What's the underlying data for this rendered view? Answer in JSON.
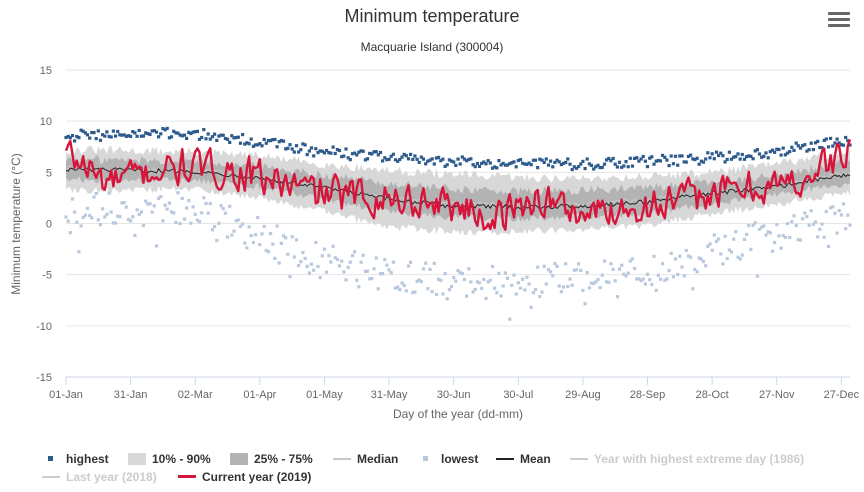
{
  "chart": {
    "title": "Minimum temperature",
    "subtitle": "Macquarie Island (300004)",
    "menu_icon": "hamburger-menu-icon"
  },
  "chart_data": {
    "type": "line",
    "xlabel": "Day of the year (dd-mm)",
    "ylabel": "Minimum temperature (°C)",
    "ylim": [
      -15,
      15
    ],
    "yticks": [
      15,
      10,
      5,
      0,
      -5,
      -10,
      -15
    ],
    "x_ticks": [
      {
        "day": 1,
        "label": "01-Jan"
      },
      {
        "day": 31,
        "label": "31-Jan"
      },
      {
        "day": 61,
        "label": "02-Mar"
      },
      {
        "day": 91,
        "label": "01-Apr"
      },
      {
        "day": 121,
        "label": "01-May"
      },
      {
        "day": 151,
        "label": "31-May"
      },
      {
        "day": 181,
        "label": "30-Jun"
      },
      {
        "day": 211,
        "label": "30-Jul"
      },
      {
        "day": 241,
        "label": "29-Aug"
      },
      {
        "day": 271,
        "label": "28-Sep"
      },
      {
        "day": 301,
        "label": "28-Oct"
      },
      {
        "day": 331,
        "label": "27-Nov"
      },
      {
        "day": 361,
        "label": "27-Dec"
      }
    ],
    "grid": true,
    "legend_position": "bottom",
    "series": [
      {
        "name": "highest",
        "kind": "scatter",
        "color": "#2f5b8c",
        "active": true,
        "anchors": [
          [
            1,
            8.6
          ],
          [
            30,
            8.7
          ],
          [
            60,
            8.8
          ],
          [
            90,
            8.0
          ],
          [
            120,
            7.0
          ],
          [
            150,
            6.5
          ],
          [
            180,
            6.0
          ],
          [
            210,
            5.9
          ],
          [
            240,
            5.8
          ],
          [
            270,
            6.0
          ],
          [
            300,
            6.4
          ],
          [
            330,
            7.0
          ],
          [
            365,
            8.2
          ]
        ],
        "noise": 0.55
      },
      {
        "name": "10% - 90%",
        "kind": "band",
        "color": "#d8d8d8",
        "active": true,
        "lower_anchors": [
          [
            1,
            3.2
          ],
          [
            60,
            3.4
          ],
          [
            90,
            2.6
          ],
          [
            120,
            1.2
          ],
          [
            150,
            -0.3
          ],
          [
            180,
            -0.8
          ],
          [
            210,
            -0.8
          ],
          [
            240,
            -0.6
          ],
          [
            270,
            -0.2
          ],
          [
            300,
            0.9
          ],
          [
            330,
            1.9
          ],
          [
            365,
            3.0
          ]
        ],
        "upper_anchors": [
          [
            1,
            7.2
          ],
          [
            60,
            7.0
          ],
          [
            90,
            6.6
          ],
          [
            120,
            5.8
          ],
          [
            150,
            5.2
          ],
          [
            180,
            4.8
          ],
          [
            210,
            4.5
          ],
          [
            240,
            4.4
          ],
          [
            270,
            4.6
          ],
          [
            300,
            5.0
          ],
          [
            330,
            5.8
          ],
          [
            365,
            7.0
          ]
        ]
      },
      {
        "name": "25% - 75%",
        "kind": "band",
        "color": "#b3b3b3",
        "active": true,
        "lower_anchors": [
          [
            1,
            4.3
          ],
          [
            60,
            4.2
          ],
          [
            90,
            3.6
          ],
          [
            120,
            2.4
          ],
          [
            150,
            1.2
          ],
          [
            180,
            0.6
          ],
          [
            210,
            0.5
          ],
          [
            240,
            0.7
          ],
          [
            270,
            1.0
          ],
          [
            300,
            1.9
          ],
          [
            330,
            2.8
          ],
          [
            365,
            4.0
          ]
        ],
        "upper_anchors": [
          [
            1,
            6.3
          ],
          [
            60,
            6.1
          ],
          [
            90,
            5.6
          ],
          [
            120,
            4.8
          ],
          [
            150,
            3.9
          ],
          [
            180,
            3.4
          ],
          [
            210,
            3.1
          ],
          [
            240,
            3.2
          ],
          [
            270,
            3.5
          ],
          [
            300,
            4.0
          ],
          [
            330,
            4.7
          ],
          [
            365,
            6.0
          ]
        ]
      },
      {
        "name": "Median",
        "kind": "line",
        "color": "#c8c8c8",
        "active": true,
        "anchors": [
          [
            1,
            5.4
          ],
          [
            60,
            5.2
          ],
          [
            90,
            4.6
          ],
          [
            120,
            3.6
          ],
          [
            150,
            2.6
          ],
          [
            180,
            2.0
          ],
          [
            210,
            1.8
          ],
          [
            240,
            1.9
          ],
          [
            270,
            2.3
          ],
          [
            300,
            3.0
          ],
          [
            330,
            3.8
          ],
          [
            365,
            5.0
          ]
        ]
      },
      {
        "name": "lowest",
        "kind": "scatter",
        "color": "#b8c9dd",
        "active": true,
        "anchors": [
          [
            1,
            1.2
          ],
          [
            30,
            1.7
          ],
          [
            60,
            1.5
          ],
          [
            90,
            -1.0
          ],
          [
            120,
            -3.5
          ],
          [
            150,
            -5.0
          ],
          [
            180,
            -5.5
          ],
          [
            210,
            -5.8
          ],
          [
            240,
            -5.0
          ],
          [
            270,
            -5.0
          ],
          [
            300,
            -2.8
          ],
          [
            330,
            -1.0
          ],
          [
            365,
            0.6
          ]
        ],
        "noise": 1.6
      },
      {
        "name": "Mean",
        "kind": "line",
        "color": "#222222",
        "active": true,
        "anchors": [
          [
            1,
            5.3
          ],
          [
            60,
            5.1
          ],
          [
            90,
            4.5
          ],
          [
            120,
            3.5
          ],
          [
            150,
            2.4
          ],
          [
            180,
            1.7
          ],
          [
            210,
            1.6
          ],
          [
            240,
            1.7
          ],
          [
            270,
            2.1
          ],
          [
            300,
            2.9
          ],
          [
            330,
            3.6
          ],
          [
            365,
            4.8
          ]
        ]
      },
      {
        "name": "Year with highest extreme day (1986)",
        "kind": "line",
        "color": "#cccccc",
        "active": false
      },
      {
        "name": "Last year (2018)",
        "kind": "line",
        "color": "#cccccc",
        "active": false
      },
      {
        "name": "Current year (2019)",
        "kind": "line",
        "color": "#d7153a",
        "active": true,
        "anchors": [
          [
            1,
            7.0
          ],
          [
            20,
            4.0
          ],
          [
            40,
            5.0
          ],
          [
            60,
            5.5
          ],
          [
            80,
            5.0
          ],
          [
            100,
            4.0
          ],
          [
            120,
            3.0
          ],
          [
            150,
            2.5
          ],
          [
            180,
            2.0
          ],
          [
            200,
            0.5
          ],
          [
            220,
            2.5
          ],
          [
            240,
            1.0
          ],
          [
            260,
            1.5
          ],
          [
            280,
            2.0
          ],
          [
            300,
            3.0
          ],
          [
            320,
            3.5
          ],
          [
            340,
            4.0
          ],
          [
            365,
            7.0
          ]
        ],
        "noise": 1.9
      }
    ]
  }
}
